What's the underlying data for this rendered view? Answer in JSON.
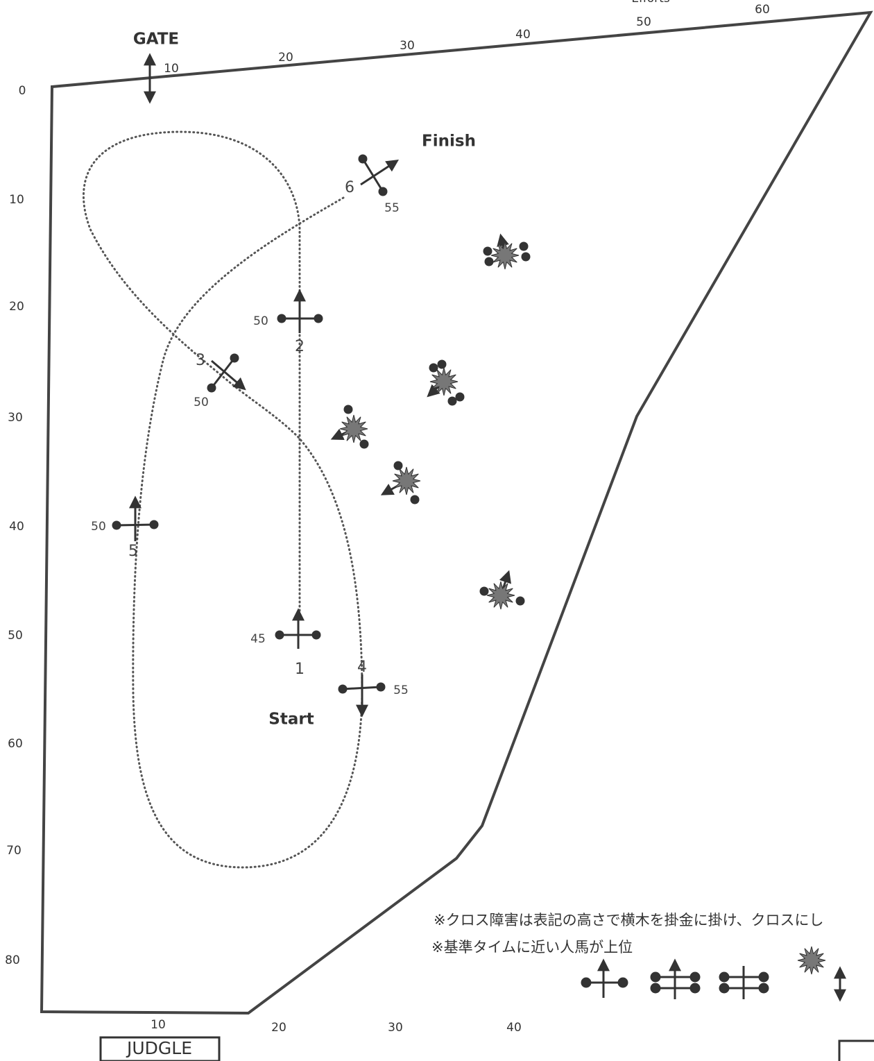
{
  "header": {
    "gate": "GATE",
    "finish": "Finish",
    "start": "Start",
    "judge": "JUDGLE",
    "efforts": "Efforts"
  },
  "rulers": {
    "top": [
      10,
      20,
      30,
      40,
      50,
      60
    ],
    "left": [
      0,
      10,
      20,
      30,
      40,
      50,
      60,
      70,
      80
    ],
    "bottom": [
      10,
      20,
      30,
      40
    ]
  },
  "fences": [
    {
      "number": 1,
      "height": 45
    },
    {
      "number": 2,
      "height": 50
    },
    {
      "number": 3,
      "height": 50
    },
    {
      "number": 4,
      "height": 55
    },
    {
      "number": 5,
      "height": 50
    },
    {
      "number": 6,
      "height": 55
    }
  ],
  "notes": [
    "※クロス障害は表記の高さで横木を掛金に掛け、クロスにし",
    "※基準タイムに近い人馬が上位"
  ]
}
